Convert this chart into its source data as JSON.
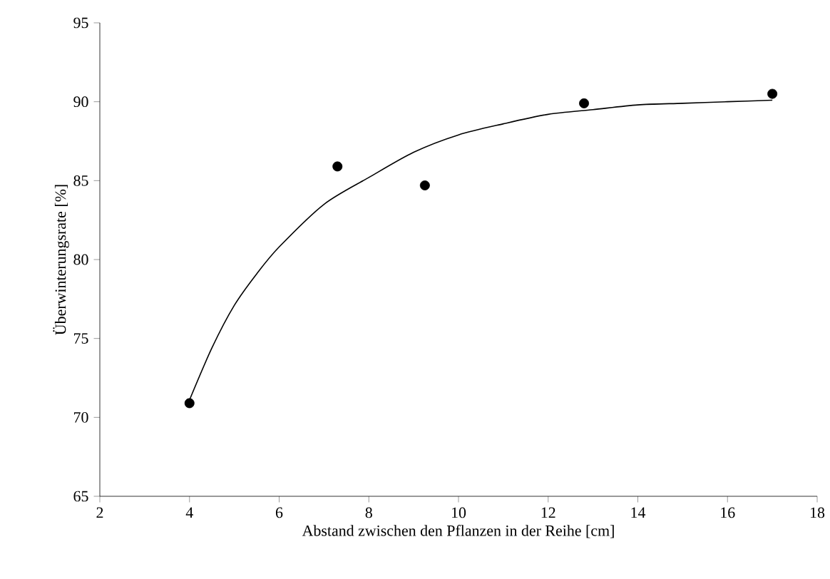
{
  "chart_data": {
    "type": "scatter",
    "xlabel": "Abstand zwischen den Pflanzen in der Reihe [cm]",
    "ylabel": "Überwinterungsrate [%]",
    "xlim": [
      2,
      18
    ],
    "xticks": [
      2,
      4,
      6,
      8,
      10,
      12,
      14,
      16,
      18
    ],
    "ylim": [
      65,
      95
    ],
    "yticks": [
      65,
      70,
      75,
      80,
      85,
      90,
      95
    ],
    "grid": false,
    "series": [
      {
        "color": "#000000",
        "marker": "circle",
        "x": [
          4,
          7.3,
          9.25,
          12.8,
          17.0
        ],
        "values": [
          70.9,
          85.9,
          84.7,
          89.9,
          90.5
        ]
      },
      {
        "type": "line",
        "color": "#000000",
        "marker": "none",
        "line_style": "solid",
        "x": [
          4,
          4.5,
          5,
          5.5,
          6,
          7,
          8,
          9,
          10,
          11,
          12,
          13,
          14,
          15,
          16,
          17
        ],
        "values": [
          71.1,
          74.4,
          77.1,
          79.1,
          80.8,
          83.5,
          85.2,
          86.8,
          87.9,
          88.6,
          89.2,
          89.5,
          89.8,
          89.9,
          90.0,
          90.1
        ]
      }
    ]
  }
}
